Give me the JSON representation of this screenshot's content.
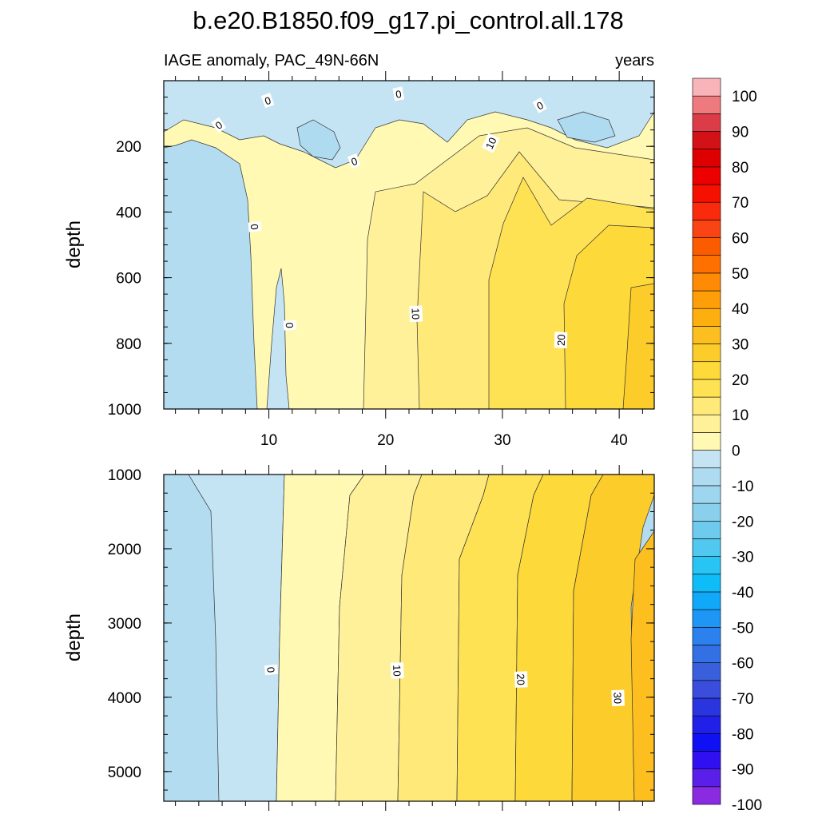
{
  "chart_data": {
    "type": "heatmap",
    "title": "b.e20.B1850.f09_g17.pi_control.all.178",
    "subtitle_left": "IAGE anomaly, PAC_49N-66N",
    "subtitle_right": "years",
    "xlim": [
      1,
      43
    ],
    "xticks": [
      10,
      20,
      30,
      40
    ],
    "panels": [
      {
        "name": "upper",
        "ylabel": "depth",
        "ylim": [
          0,
          1000
        ],
        "yticks": [
          200,
          400,
          600,
          800,
          1000
        ],
        "contour_labels": [
          {
            "text": "0",
            "x": 9.9,
            "y": 60,
            "rot": -20
          },
          {
            "text": "0",
            "x": 5.7,
            "y": 135,
            "rot": -35
          },
          {
            "text": "0",
            "x": 21.1,
            "y": 40,
            "rot": -10
          },
          {
            "text": "0",
            "x": 33.2,
            "y": 75,
            "rot": -30
          },
          {
            "text": "0",
            "x": 17.3,
            "y": 245,
            "rot": -20
          },
          {
            "text": "10",
            "x": 29.0,
            "y": 190,
            "rot": -65
          },
          {
            "text": "0",
            "x": 8.8,
            "y": 445,
            "rot": 85
          },
          {
            "text": "0",
            "x": 11.8,
            "y": 745,
            "rot": 88
          },
          {
            "text": "10",
            "x": 22.6,
            "y": 710,
            "rot": 88
          },
          {
            "text": "20",
            "x": 35.0,
            "y": 790,
            "rot": -88
          }
        ]
      },
      {
        "name": "lower",
        "ylabel": "depth",
        "ylim": [
          1000,
          5400
        ],
        "yticks": [
          1000,
          2000,
          3000,
          4000,
          5000
        ],
        "contour_labels": [
          {
            "text": "0",
            "x": 10.2,
            "y": 3630,
            "rot": 85
          },
          {
            "text": "10",
            "x": 21.0,
            "y": 3640,
            "rot": 88
          },
          {
            "text": "20",
            "x": 31.6,
            "y": 3760,
            "rot": 88
          },
          {
            "text": "30",
            "x": 39.9,
            "y": 4010,
            "rot": 88
          }
        ]
      }
    ],
    "colorbar": {
      "levels": [
        -100,
        -95,
        -90,
        -85,
        -80,
        -75,
        -70,
        -65,
        -60,
        -55,
        -50,
        -45,
        -40,
        -35,
        -30,
        -25,
        -20,
        -15,
        -10,
        -5,
        0,
        5,
        10,
        15,
        20,
        25,
        30,
        35,
        40,
        45,
        50,
        55,
        60,
        65,
        70,
        75,
        80,
        85,
        90,
        95,
        100
      ],
      "labels": [
        "100",
        "90",
        "80",
        "70",
        "60",
        "50",
        "40",
        "30",
        "20",
        "10",
        "0",
        "-10",
        "-20",
        "-30",
        "-40",
        "-50",
        "-60",
        "-70",
        "-80",
        "-90",
        "-100"
      ],
      "colors_bottom_to_top": [
        "#8a2be2",
        "#5a1fe8",
        "#3010f0",
        "#1010f5",
        "#2020e8",
        "#2a35e0",
        "#3a4ddc",
        "#3a5fdc",
        "#3270e4",
        "#2b82ee",
        "#1e96f5",
        "#10a8f8",
        "#0ebcf8",
        "#28c4f4",
        "#50c8f0",
        "#6ecbee",
        "#8ad0ec",
        "#9dd6ee",
        "#aedbf0",
        "#c4e4f4",
        "#fff9b4",
        "#fff19a",
        "#ffe978",
        "#ffe254",
        "#fdd93a",
        "#fccc2a",
        "#fdbf20",
        "#feaf10",
        "#fe9e08",
        "#fe8a06",
        "#fe7000",
        "#fc5c00",
        "#fa4414",
        "#fa2a0c",
        "#f51000",
        "#ec0000",
        "#de0000",
        "#d21216",
        "#dc3c48",
        "#ee7a7e",
        "#f8b4b8"
      ]
    }
  }
}
